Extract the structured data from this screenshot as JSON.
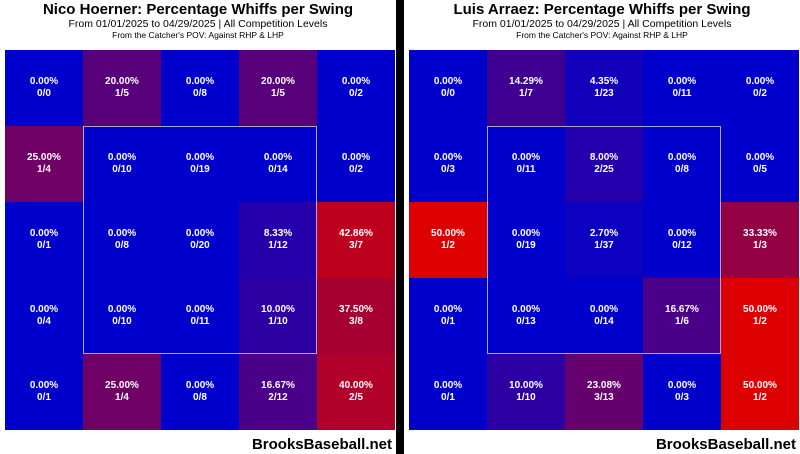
{
  "chart_data": [
    {
      "type": "heatmap",
      "title": "Nico Hoerner: Percentage Whiffs per Swing",
      "subtitle": "From 01/01/2025 to 04/29/2025 | All Competition Levels",
      "note": "From the Catcher's POV:   Against RHP & LHP",
      "brand": "BrooksBaseball.net",
      "rows": [
        [
          {
            "pct": "0.00%",
            "frac": "0/0",
            "v": 0
          },
          {
            "pct": "20.00%",
            "frac": "1/5",
            "v": 20
          },
          {
            "pct": "0.00%",
            "frac": "0/8",
            "v": 0
          },
          {
            "pct": "20.00%",
            "frac": "1/5",
            "v": 20
          },
          {
            "pct": "0.00%",
            "frac": "0/2",
            "v": 0
          }
        ],
        [
          {
            "pct": "25.00%",
            "frac": "1/4",
            "v": 25
          },
          {
            "pct": "0.00%",
            "frac": "0/10",
            "v": 0
          },
          {
            "pct": "0.00%",
            "frac": "0/19",
            "v": 0
          },
          {
            "pct": "0.00%",
            "frac": "0/14",
            "v": 0
          },
          {
            "pct": "0.00%",
            "frac": "0/2",
            "v": 0
          }
        ],
        [
          {
            "pct": "0.00%",
            "frac": "0/1",
            "v": 0
          },
          {
            "pct": "0.00%",
            "frac": "0/8",
            "v": 0
          },
          {
            "pct": "0.00%",
            "frac": "0/20",
            "v": 0
          },
          {
            "pct": "8.33%",
            "frac": "1/12",
            "v": 8.33
          },
          {
            "pct": "42.86%",
            "frac": "3/7",
            "v": 42.86
          }
        ],
        [
          {
            "pct": "0.00%",
            "frac": "0/4",
            "v": 0
          },
          {
            "pct": "0.00%",
            "frac": "0/10",
            "v": 0
          },
          {
            "pct": "0.00%",
            "frac": "0/11",
            "v": 0
          },
          {
            "pct": "10.00%",
            "frac": "1/10",
            "v": 10
          },
          {
            "pct": "37.50%",
            "frac": "3/8",
            "v": 37.5
          }
        ],
        [
          {
            "pct": "0.00%",
            "frac": "0/1",
            "v": 0
          },
          {
            "pct": "25.00%",
            "frac": "1/4",
            "v": 25
          },
          {
            "pct": "0.00%",
            "frac": "0/8",
            "v": 0
          },
          {
            "pct": "16.67%",
            "frac": "2/12",
            "v": 16.67
          },
          {
            "pct": "40.00%",
            "frac": "2/5",
            "v": 40
          }
        ]
      ]
    },
    {
      "type": "heatmap",
      "title": "Luis Arraez: Percentage Whiffs per Swing",
      "subtitle": "From 01/01/2025 to 04/29/2025 | All Competition Levels",
      "note": "From the Catcher's POV:   Against RHP & LHP",
      "brand": "BrooksBaseball.net",
      "rows": [
        [
          {
            "pct": "0.00%",
            "frac": "0/0",
            "v": 0
          },
          {
            "pct": "14.29%",
            "frac": "1/7",
            "v": 14.29
          },
          {
            "pct": "4.35%",
            "frac": "1/23",
            "v": 4.35
          },
          {
            "pct": "0.00%",
            "frac": "0/11",
            "v": 0
          },
          {
            "pct": "0.00%",
            "frac": "0/2",
            "v": 0
          }
        ],
        [
          {
            "pct": "0.00%",
            "frac": "0/3",
            "v": 0
          },
          {
            "pct": "0.00%",
            "frac": "0/11",
            "v": 0
          },
          {
            "pct": "8.00%",
            "frac": "2/25",
            "v": 8
          },
          {
            "pct": "0.00%",
            "frac": "0/8",
            "v": 0
          },
          {
            "pct": "0.00%",
            "frac": "0/5",
            "v": 0
          }
        ],
        [
          {
            "pct": "50.00%",
            "frac": "1/2",
            "v": 50
          },
          {
            "pct": "0.00%",
            "frac": "0/19",
            "v": 0
          },
          {
            "pct": "2.70%",
            "frac": "1/37",
            "v": 2.7
          },
          {
            "pct": "0.00%",
            "frac": "0/12",
            "v": 0
          },
          {
            "pct": "33.33%",
            "frac": "1/3",
            "v": 33.33
          }
        ],
        [
          {
            "pct": "0.00%",
            "frac": "0/1",
            "v": 0
          },
          {
            "pct": "0.00%",
            "frac": "0/13",
            "v": 0
          },
          {
            "pct": "0.00%",
            "frac": "0/14",
            "v": 0
          },
          {
            "pct": "16.67%",
            "frac": "1/6",
            "v": 16.67
          },
          {
            "pct": "50.00%",
            "frac": "1/2",
            "v": 50
          }
        ],
        [
          {
            "pct": "0.00%",
            "frac": "0/1",
            "v": 0
          },
          {
            "pct": "10.00%",
            "frac": "1/10",
            "v": 10
          },
          {
            "pct": "23.08%",
            "frac": "3/13",
            "v": 23.08
          },
          {
            "pct": "0.00%",
            "frac": "0/3",
            "v": 0
          },
          {
            "pct": "50.00%",
            "frac": "1/2",
            "v": 50
          }
        ]
      ]
    }
  ],
  "colors": {
    "low": "#0000cc",
    "high": "#dd0000"
  }
}
